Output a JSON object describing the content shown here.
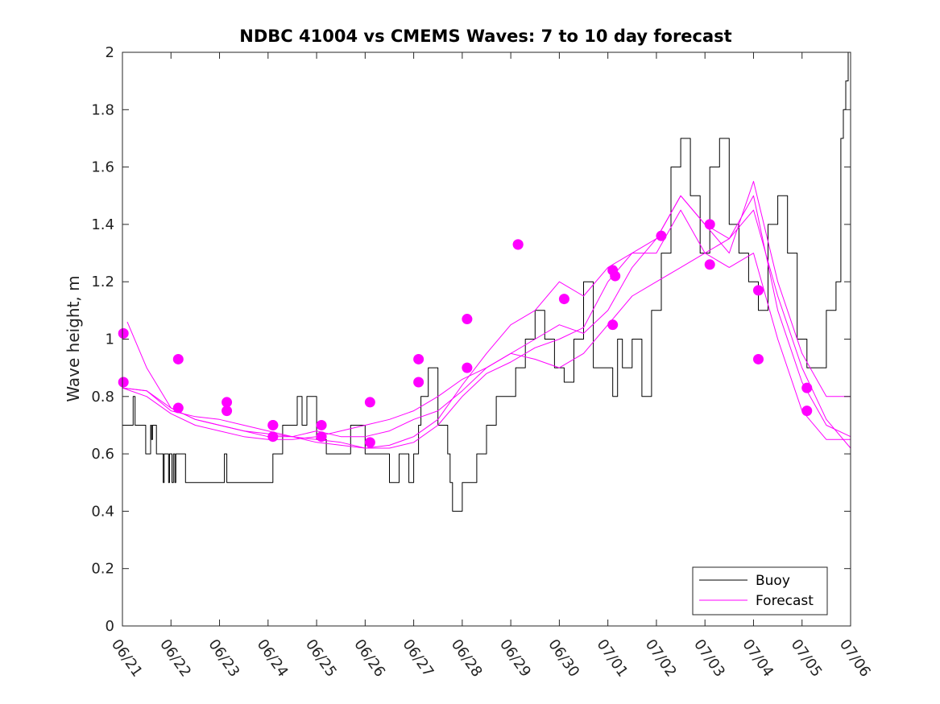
{
  "chart_data": {
    "type": "line",
    "title": "NDBC 41004 vs CMEMS Waves: 7 to 10 day forecast",
    "xlabel": "",
    "ylabel": "Wave height, m",
    "xlim": [
      "06/21",
      "07/06"
    ],
    "ylim": [
      0,
      2
    ],
    "x_tick_labels": [
      "06/21",
      "06/22",
      "06/23",
      "06/24",
      "06/25",
      "06/26",
      "06/27",
      "06/28",
      "06/29",
      "06/30",
      "07/01",
      "07/02",
      "07/03",
      "07/04",
      "07/05",
      "07/06"
    ],
    "y_tick_labels": [
      "0",
      "0.2",
      "0.4",
      "0.6",
      "0.8",
      "1",
      "1.2",
      "1.4",
      "1.6",
      "1.8",
      "2"
    ],
    "legend": {
      "placement": "bottom-right",
      "entries": [
        "Buoy",
        "Forecast"
      ]
    },
    "colors": {
      "buoy": "#000000",
      "forecast": "#ff00ff"
    },
    "series": [
      {
        "name": "Buoy",
        "x": [
          0,
          0.2,
          0.22,
          0.26,
          0.45,
          0.48,
          0.58,
          0.6,
          0.62,
          0.7,
          0.72,
          0.8,
          0.84,
          0.86,
          0.9,
          0.95,
          0.97,
          1.02,
          1.05,
          1.08,
          1.1,
          1.15,
          1.2,
          1.3,
          1.5,
          1.7,
          1.8,
          2.0,
          2.1,
          2.15,
          2.3,
          2.6,
          3.0,
          3.1,
          3.2,
          3.3,
          3.6,
          3.7,
          3.8,
          4.0,
          4.2,
          4.3,
          4.5,
          4.7,
          5.0,
          5.2,
          5.5,
          5.7,
          5.9,
          6.0,
          6.1,
          6.15,
          6.3,
          6.5,
          6.7,
          6.75,
          6.8,
          7.0,
          7.3,
          7.5,
          7.7,
          7.9,
          8.1,
          8.3,
          8.5,
          8.7,
          8.9,
          9.1,
          9.3,
          9.5,
          9.7,
          9.9,
          10.1,
          10.2,
          10.3,
          10.5,
          10.7,
          10.9,
          11.1,
          11.3,
          11.5,
          11.7,
          11.9,
          12.1,
          12.3,
          12.5,
          12.7,
          12.9,
          13.1,
          13.3,
          13.5,
          13.7,
          13.9,
          14.1,
          14.3,
          14.5,
          14.7,
          14.8,
          14.85,
          14.9,
          14.95
        ],
        "values": [
          0.7,
          0.7,
          0.8,
          0.7,
          0.7,
          0.6,
          0.7,
          0.65,
          0.7,
          0.6,
          0.6,
          0.6,
          0.5,
          0.6,
          0.6,
          0.5,
          0.6,
          0.5,
          0.6,
          0.5,
          0.6,
          0.6,
          0.6,
          0.5,
          0.5,
          0.5,
          0.5,
          0.5,
          0.6,
          0.5,
          0.5,
          0.5,
          0.5,
          0.6,
          0.6,
          0.7,
          0.8,
          0.7,
          0.8,
          0.65,
          0.6,
          0.6,
          0.6,
          0.7,
          0.6,
          0.6,
          0.5,
          0.6,
          0.5,
          0.6,
          0.7,
          0.8,
          0.9,
          0.7,
          0.6,
          0.5,
          0.4,
          0.5,
          0.6,
          0.7,
          0.8,
          0.8,
          0.9,
          1.0,
          1.1,
          1.0,
          0.9,
          0.85,
          1.0,
          1.2,
          0.9,
          0.9,
          0.8,
          1.0,
          0.9,
          1.0,
          0.8,
          1.1,
          1.3,
          1.6,
          1.7,
          1.5,
          1.3,
          1.6,
          1.7,
          1.4,
          1.3,
          1.2,
          1.1,
          1.4,
          1.5,
          1.3,
          1.0,
          0.9,
          0.9,
          1.1,
          1.2,
          1.7,
          1.8,
          1.9,
          2.0
        ]
      },
      {
        "name": "Forecast",
        "x": [
          0.1,
          0.5,
          1.0,
          1.5,
          2.0,
          2.5,
          3.0,
          3.5,
          4.0,
          4.5,
          5.0,
          5.5,
          6.0,
          6.5,
          7.0,
          7.5,
          8.0,
          8.5,
          9.0,
          9.5,
          10.0,
          10.5,
          11.0,
          11.5,
          12.0,
          12.5,
          13.0,
          13.5,
          14.0,
          14.5,
          15.0
        ],
        "values": [
          1.06,
          0.9,
          0.76,
          0.72,
          0.7,
          0.68,
          0.66,
          0.66,
          0.68,
          0.66,
          0.66,
          0.68,
          0.72,
          0.75,
          0.82,
          0.9,
          0.95,
          1.0,
          1.05,
          1.02,
          1.1,
          1.25,
          1.35,
          1.5,
          1.4,
          1.3,
          1.55,
          1.2,
          0.95,
          0.8,
          0.8
        ]
      },
      {
        "name": "",
        "x": [
          0,
          0.5,
          1.0,
          1.5,
          2.0,
          2.5,
          3.0,
          3.5,
          4.0,
          4.5,
          5.0,
          5.5,
          6.0,
          6.5,
          7.0,
          7.5,
          8.0,
          8.5,
          9.0,
          9.5,
          10.0,
          10.5,
          11.0,
          11.5,
          12.0,
          12.5,
          13.0,
          13.5,
          14.0,
          14.5,
          15.0
        ],
        "values": [
          0.83,
          0.82,
          0.76,
          0.72,
          0.7,
          0.68,
          0.67,
          0.66,
          0.65,
          0.64,
          0.62,
          0.62,
          0.64,
          0.7,
          0.8,
          0.88,
          0.92,
          0.97,
          1.0,
          1.04,
          1.2,
          1.3,
          1.3,
          1.45,
          1.3,
          1.35,
          1.5,
          1.1,
          0.85,
          0.7,
          0.66
        ]
      },
      {
        "name": "",
        "x": [
          0,
          0.5,
          1.0,
          1.5,
          2.0,
          2.5,
          3.0,
          3.5,
          4.0,
          4.5,
          5.0,
          5.5,
          6.0,
          6.5,
          7.0,
          7.5,
          8.0,
          8.5,
          9.0,
          9.5,
          10.0,
          10.5,
          11.0,
          11.5,
          12.0,
          12.5,
          13.0,
          13.5,
          14.0,
          14.5,
          15.0
        ],
        "values": [
          0.83,
          0.8,
          0.74,
          0.7,
          0.68,
          0.66,
          0.65,
          0.65,
          0.66,
          0.68,
          0.7,
          0.72,
          0.75,
          0.8,
          0.86,
          0.9,
          0.95,
          0.93,
          0.9,
          0.95,
          1.05,
          1.15,
          1.2,
          1.25,
          1.3,
          1.25,
          1.3,
          1.0,
          0.75,
          0.65,
          0.65
        ]
      },
      {
        "name": "",
        "x": [
          0,
          0.5,
          1.0,
          1.5,
          2.0,
          2.5,
          3.0,
          3.5,
          4.0,
          4.5,
          5.0,
          5.5,
          6.0,
          6.5,
          7.0,
          7.5,
          8.0,
          8.5,
          9.0,
          9.5,
          10.0,
          10.5,
          11.0,
          11.5,
          12.0,
          12.5,
          13.0,
          13.5,
          14.0,
          14.5,
          15.0
        ],
        "values": [
          0.83,
          0.82,
          0.75,
          0.73,
          0.72,
          0.7,
          0.68,
          0.66,
          0.64,
          0.63,
          0.62,
          0.63,
          0.66,
          0.72,
          0.84,
          0.95,
          1.05,
          1.1,
          1.2,
          1.15,
          1.25,
          1.3,
          1.35,
          1.5,
          1.4,
          1.35,
          1.45,
          1.15,
          0.9,
          0.72,
          0.62
        ]
      }
    ],
    "forecast_start_markers": {
      "x": [
        0.02,
        0.02,
        1.15,
        1.15,
        2.15,
        2.15,
        3.1,
        3.1,
        3.1,
        4.1,
        4.1,
        5.1,
        5.1,
        6.1,
        6.1,
        7.1,
        7.1,
        8.15,
        8.15,
        9.1,
        10.1,
        10.1,
        10.15,
        11.1,
        12.1,
        12.1,
        13.1,
        13.1,
        14.1,
        14.1
      ],
      "values": [
        1.02,
        0.85,
        0.93,
        0.76,
        0.78,
        0.75,
        0.7,
        0.66,
        0.7,
        0.7,
        0.66,
        0.78,
        0.64,
        0.93,
        0.85,
        1.07,
        0.9,
        1.33,
        1.33,
        1.14,
        1.05,
        1.24,
        1.22,
        1.36,
        1.4,
        1.26,
        1.17,
        0.93,
        0.83,
        0.75
      ]
    }
  }
}
